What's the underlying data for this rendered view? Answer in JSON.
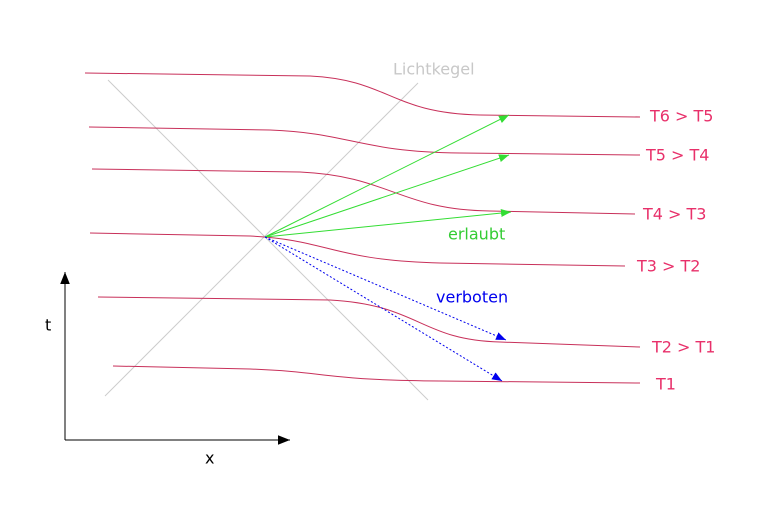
{
  "diagram": {
    "light_cone_label": "Lichtkegel",
    "allowed_label": "erlaubt",
    "forbidden_label": "verboten",
    "axis_t": "t",
    "axis_x": "x",
    "isotherms": [
      "T6 > T5",
      "T5 > T4",
      "T4 > T3",
      "T3 > T2",
      "T2 > T1",
      "T1"
    ]
  }
}
